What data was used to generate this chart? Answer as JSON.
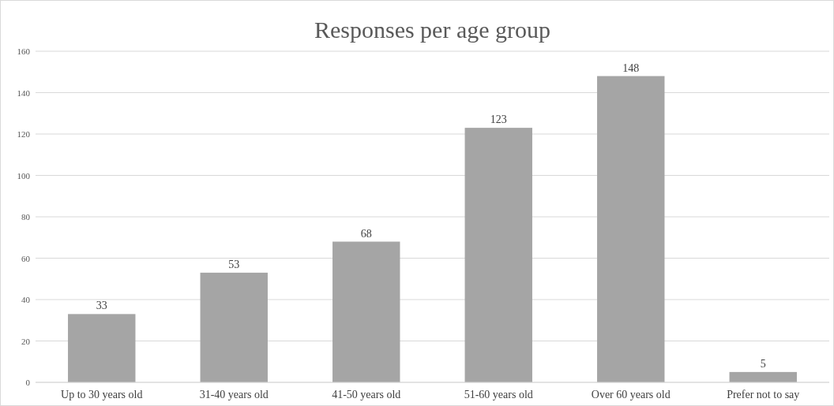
{
  "chart_data": {
    "type": "bar",
    "title": "Responses per age group",
    "categories": [
      "Up to 30 years old",
      "31-40 years old",
      "41-50 years old",
      "51-60 years old",
      "Over 60 years old",
      "Prefer not to say"
    ],
    "values": [
      33,
      53,
      68,
      123,
      148,
      5
    ],
    "color": "#a5a5a5",
    "ylim": [
      0,
      160
    ],
    "yticks": [
      0,
      20,
      40,
      60,
      80,
      100,
      120,
      140,
      160
    ],
    "grid": "y",
    "data_labels": true
  }
}
